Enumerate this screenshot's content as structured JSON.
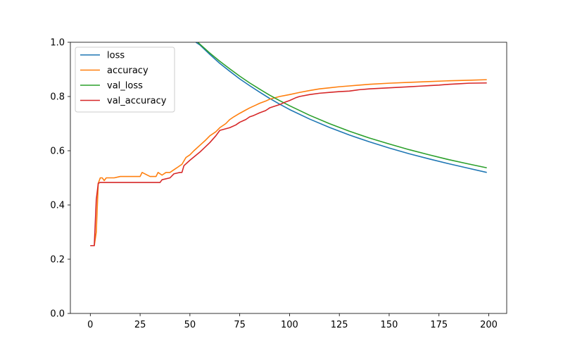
{
  "chart_data": {
    "type": "line",
    "title": "",
    "xlabel": "",
    "ylabel": "",
    "xlim": [
      -10,
      209
    ],
    "ylim": [
      0.0,
      1.0
    ],
    "xticks": [
      0,
      25,
      50,
      75,
      100,
      125,
      150,
      175,
      200
    ],
    "yticks": [
      0.0,
      0.2,
      0.4,
      0.6,
      0.8,
      1.0
    ],
    "ytick_labels": [
      "0.0",
      "0.2",
      "0.4",
      "0.6",
      "0.8",
      "1.0"
    ],
    "grid": false,
    "legend_position": "top-left",
    "series": [
      {
        "name": "loss",
        "color": "#1f77b4",
        "x": [
          53,
          55,
          60,
          65,
          70,
          75,
          80,
          85,
          90,
          95,
          100,
          110,
          120,
          130,
          140,
          150,
          160,
          170,
          180,
          190,
          199
        ],
        "y": [
          1.0,
          0.99,
          0.955,
          0.922,
          0.893,
          0.865,
          0.84,
          0.816,
          0.793,
          0.772,
          0.752,
          0.717,
          0.686,
          0.658,
          0.633,
          0.61,
          0.589,
          0.57,
          0.552,
          0.535,
          0.52
        ]
      },
      {
        "name": "accuracy",
        "color": "#ff7f0e",
        "x": [
          0,
          2,
          3,
          4,
          5,
          6,
          7,
          8,
          10,
          12,
          15,
          20,
          25,
          26,
          30,
          33,
          34,
          36,
          38,
          40,
          42,
          44,
          46,
          48,
          50,
          52,
          55,
          58,
          60,
          63,
          65,
          68,
          70,
          72,
          75,
          78,
          80,
          83,
          85,
          88,
          90,
          95,
          100,
          105,
          110,
          115,
          120,
          125,
          130,
          140,
          150,
          160,
          170,
          180,
          190,
          199
        ],
        "y": [
          0.25,
          0.25,
          0.3,
          0.48,
          0.5,
          0.5,
          0.49,
          0.5,
          0.5,
          0.5,
          0.505,
          0.505,
          0.505,
          0.52,
          0.505,
          0.505,
          0.52,
          0.51,
          0.52,
          0.52,
          0.53,
          0.54,
          0.55,
          0.575,
          0.585,
          0.6,
          0.62,
          0.64,
          0.655,
          0.67,
          0.685,
          0.7,
          0.715,
          0.725,
          0.738,
          0.75,
          0.758,
          0.768,
          0.775,
          0.783,
          0.79,
          0.8,
          0.807,
          0.815,
          0.822,
          0.828,
          0.832,
          0.836,
          0.839,
          0.845,
          0.849,
          0.852,
          0.855,
          0.858,
          0.86,
          0.862
        ]
      },
      {
        "name": "val_loss",
        "color": "#2ca02c",
        "x": [
          54,
          55,
          60,
          65,
          70,
          75,
          80,
          85,
          90,
          95,
          100,
          110,
          120,
          130,
          140,
          150,
          160,
          170,
          180,
          190,
          199
        ],
        "y": [
          1.0,
          0.993,
          0.96,
          0.93,
          0.902,
          0.875,
          0.85,
          0.827,
          0.805,
          0.785,
          0.766,
          0.731,
          0.7,
          0.672,
          0.647,
          0.625,
          0.604,
          0.585,
          0.567,
          0.551,
          0.537
        ]
      },
      {
        "name": "val_accuracy",
        "color": "#d62728",
        "x": [
          0,
          2,
          3,
          4,
          5,
          10,
          20,
          30,
          35,
          36,
          40,
          42,
          45,
          46,
          47,
          50,
          55,
          60,
          63,
          65,
          70,
          73,
          75,
          78,
          80,
          82,
          85,
          88,
          90,
          92,
          95,
          98,
          100,
          103,
          105,
          110,
          115,
          120,
          125,
          130,
          135,
          140,
          145,
          150,
          155,
          160,
          165,
          170,
          175,
          180,
          185,
          190,
          199
        ],
        "y": [
          0.25,
          0.25,
          0.42,
          0.48,
          0.483,
          0.483,
          0.483,
          0.483,
          0.483,
          0.493,
          0.5,
          0.515,
          0.52,
          0.52,
          0.545,
          0.565,
          0.595,
          0.63,
          0.655,
          0.675,
          0.685,
          0.695,
          0.705,
          0.715,
          0.725,
          0.73,
          0.74,
          0.748,
          0.758,
          0.763,
          0.77,
          0.78,
          0.785,
          0.795,
          0.8,
          0.807,
          0.812,
          0.815,
          0.818,
          0.82,
          0.825,
          0.828,
          0.83,
          0.832,
          0.834,
          0.836,
          0.838,
          0.84,
          0.842,
          0.845,
          0.847,
          0.849,
          0.85
        ]
      }
    ]
  }
}
